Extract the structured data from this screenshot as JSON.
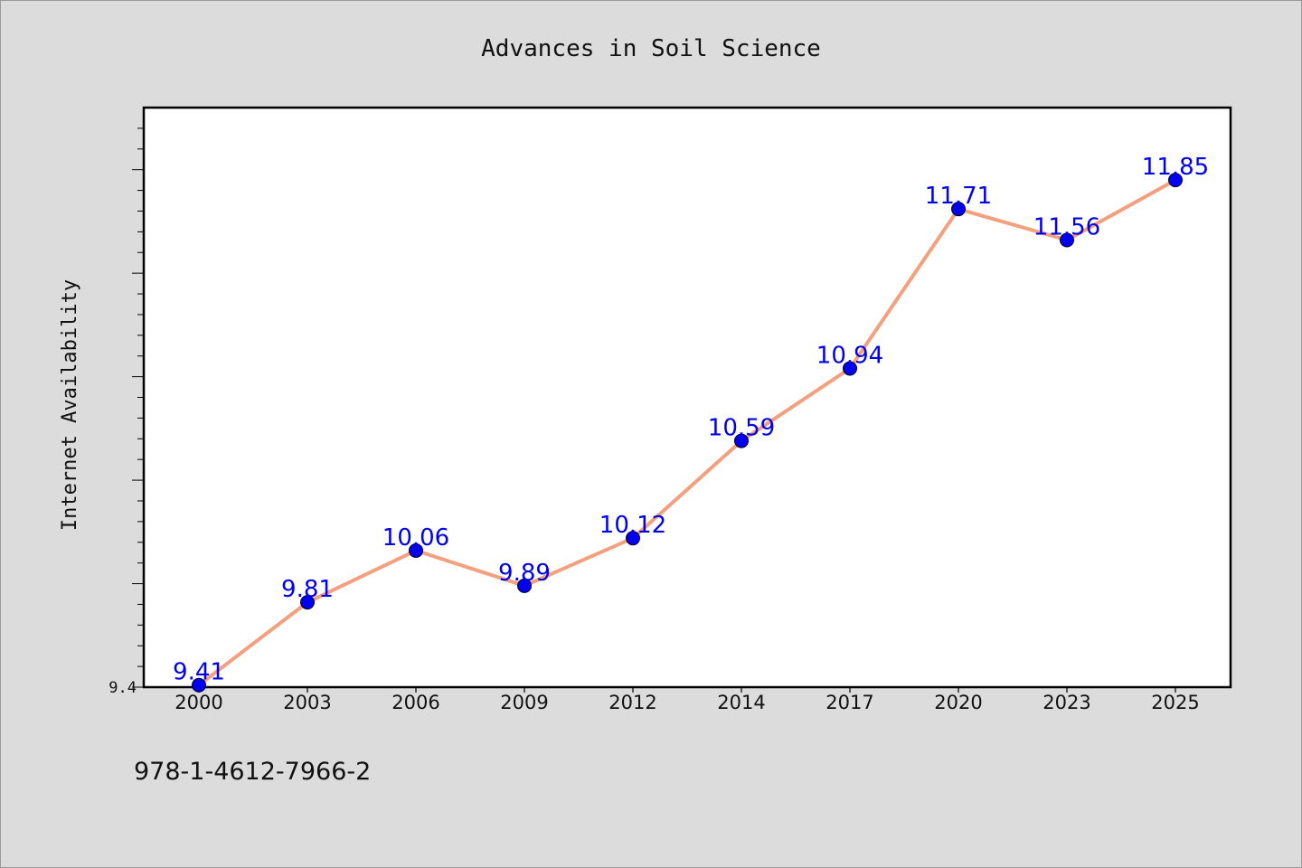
{
  "chart_data": {
    "type": "line",
    "title": "Advances in Soil Science",
    "xlabel": "",
    "ylabel": "Internet Availability",
    "categories": [
      "2000",
      "2003",
      "2006",
      "2009",
      "2012",
      "2014",
      "2017",
      "2020",
      "2023",
      "2025"
    ],
    "series": [
      {
        "values": [
          9.41,
          9.81,
          10.06,
          9.89,
          10.12,
          10.59,
          10.94,
          11.71,
          11.56,
          11.85
        ],
        "data_labels": [
          "9.41",
          "9.81",
          "10.06",
          "9.89",
          "10.12",
          "10.59",
          "10.94",
          "11.71",
          "11.56",
          "11.85"
        ]
      }
    ],
    "ylim": [
      9.4,
      12.2
    ],
    "ytick_labels": [
      "9.4"
    ],
    "grid": false,
    "legend": "none",
    "colors": {
      "line": "#f4a07e",
      "marker": "#0000ee",
      "label": "#0000ee"
    }
  },
  "footer": {
    "isbn": "978-1-4612-7966-2"
  }
}
